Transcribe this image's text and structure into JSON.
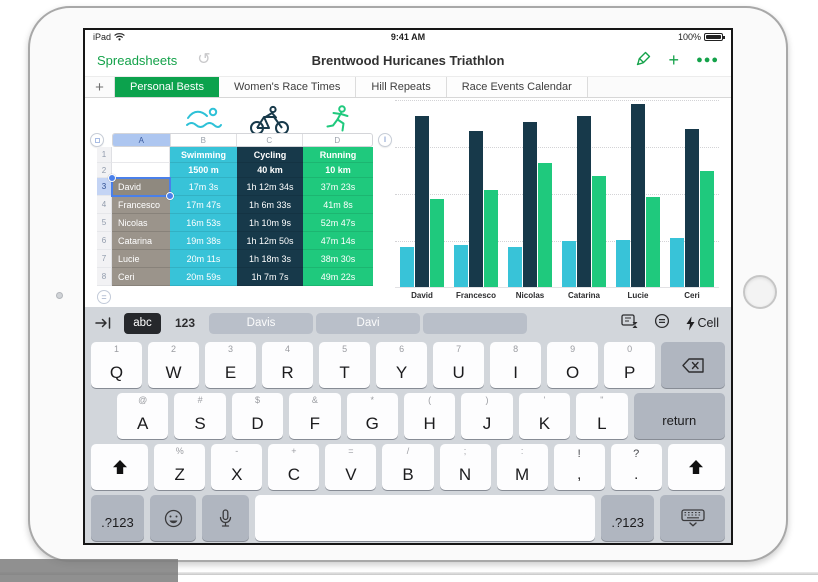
{
  "colors": {
    "accent_green": "#14a24a",
    "active_tab_green": "#0ca24d",
    "swimming_teal": "#38c3d8",
    "cycling_navy": "#17394a",
    "running_green": "#1fc97d",
    "name_column_taupe": "#9b948b",
    "selection_blue": "#4a80ea",
    "keyboard_gray": "#d2d6db"
  },
  "status_bar": {
    "device": "iPad",
    "time": "9:41 AM",
    "battery": "100%"
  },
  "nav_bar": {
    "back_label": "Spreadsheets",
    "title": "Brentwood Huricanes Triathlon"
  },
  "sheet_tabs": {
    "tabs": [
      {
        "label": "Personal Bests",
        "active": true
      },
      {
        "label": "Women's Race Times",
        "active": false
      },
      {
        "label": "Hill Repeats",
        "active": false
      },
      {
        "label": "Race Events Calendar",
        "active": false
      }
    ]
  },
  "table": {
    "column_letters": [
      "A",
      "B",
      "C",
      "D"
    ],
    "selected_column": "A",
    "selected_row": 3,
    "row_numbers": [
      "1",
      "2",
      "3",
      "4",
      "5",
      "6",
      "7",
      "8"
    ],
    "sport_columns": [
      "Swimming",
      "Cycling",
      "Running"
    ],
    "distances": [
      "1500 m",
      "40 km",
      "10 km"
    ],
    "athletes": [
      {
        "name": "David",
        "swimming": "17m 3s",
        "cycling": "1h 12m 34s",
        "running": "37m 23s",
        "selected": true
      },
      {
        "name": "Francesco",
        "swimming": "17m 47s",
        "cycling": "1h 6m 33s",
        "running": "41m 8s",
        "selected": false
      },
      {
        "name": "Nicolas",
        "swimming": "16m 53s",
        "cycling": "1h 10m 9s",
        "running": "52m 47s",
        "selected": false
      },
      {
        "name": "Catarina",
        "swimming": "19m 38s",
        "cycling": "1h 12m 50s",
        "running": "47m 14s",
        "selected": false
      },
      {
        "name": "Lucie",
        "swimming": "20m 11s",
        "cycling": "1h 18m 3s",
        "running": "38m 30s",
        "selected": false
      },
      {
        "name": "Ceri",
        "swimming": "20m 59s",
        "cycling": "1h 7m 7s",
        "running": "49m 22s",
        "selected": false
      }
    ]
  },
  "chart_data": {
    "type": "bar",
    "categories": [
      "David",
      "Francesco",
      "Nicolas",
      "Catarina",
      "Lucie",
      "Ceri"
    ],
    "series": [
      {
        "name": "Swimming",
        "color": "#38c3d8",
        "values_seconds": [
          1023,
          1067,
          1013,
          1178,
          1211,
          1259
        ]
      },
      {
        "name": "Cycling",
        "color": "#17394a",
        "values_seconds": [
          4354,
          3993,
          4209,
          4370,
          4683,
          4027
        ]
      },
      {
        "name": "Running",
        "color": "#1fc97d",
        "values_seconds": [
          2243,
          2468,
          3167,
          2834,
          2310,
          2962
        ]
      }
    ],
    "ylim": [
      0,
      4800
    ],
    "gridlines": [
      1200,
      2400,
      3600,
      4800
    ],
    "grid_style": "dotted-horizontal",
    "legend": "none",
    "title": "",
    "xlabel": "",
    "ylabel": ""
  },
  "keyboard": {
    "accessory": {
      "abc_label": "abc",
      "numbers_label": "123",
      "suggestions": [
        "Davis",
        "Davi",
        ""
      ],
      "cell_button_label": "Cell"
    },
    "rows": [
      {
        "indent": false,
        "keys": [
          {
            "l": "Q",
            "a": "1"
          },
          {
            "l": "W",
            "a": "2"
          },
          {
            "l": "E",
            "a": "3"
          },
          {
            "l": "R",
            "a": "4"
          },
          {
            "l": "T",
            "a": "5"
          },
          {
            "l": "Y",
            "a": "6"
          },
          {
            "l": "U",
            "a": "7"
          },
          {
            "l": "I",
            "a": "8"
          },
          {
            "l": "O",
            "a": "9"
          },
          {
            "l": "P",
            "a": "0"
          },
          {
            "ic": "backspace",
            "gray": true,
            "f": 1.25
          }
        ]
      },
      {
        "indent": true,
        "keys": [
          {
            "l": "A",
            "a": "@"
          },
          {
            "l": "S",
            "a": "#"
          },
          {
            "l": "D",
            "a": "$"
          },
          {
            "l": "F",
            "a": "&"
          },
          {
            "l": "G",
            "a": "*"
          },
          {
            "l": "H",
            "a": "("
          },
          {
            "l": "J",
            "a": ")"
          },
          {
            "l": "K",
            "a": "'"
          },
          {
            "l": "L",
            "a": "\""
          },
          {
            "l": "return",
            "gray": true,
            "f": 1.78,
            "small": true
          }
        ]
      },
      {
        "indent": false,
        "keys": [
          {
            "ic": "shift",
            "f": 1.12
          },
          {
            "l": "Z",
            "a": "%"
          },
          {
            "l": "X",
            "a": "-"
          },
          {
            "l": "C",
            "a": "+"
          },
          {
            "l": "V",
            "a": "="
          },
          {
            "l": "B",
            "a": "/"
          },
          {
            "l": "N",
            "a": ";"
          },
          {
            "l": "M",
            "a": ":"
          },
          {
            "l": ",",
            "a": "!",
            "punct": true
          },
          {
            "l": ".",
            "a": "?",
            "punct": true
          },
          {
            "ic": "shift",
            "f": 1.12
          }
        ]
      },
      {
        "indent": false,
        "keys": [
          {
            "l": ".?123",
            "gray": true,
            "f": 1.14,
            "small": true
          },
          {
            "ic": "emoji",
            "gray": true
          },
          {
            "ic": "mic",
            "gray": true
          },
          {
            "sp": true,
            "f": 7.35
          },
          {
            "l": ".?123",
            "gray": true,
            "f": 1.14,
            "small": true
          },
          {
            "ic": "dismiss",
            "gray": true,
            "f": 1.4
          }
        ]
      }
    ]
  }
}
